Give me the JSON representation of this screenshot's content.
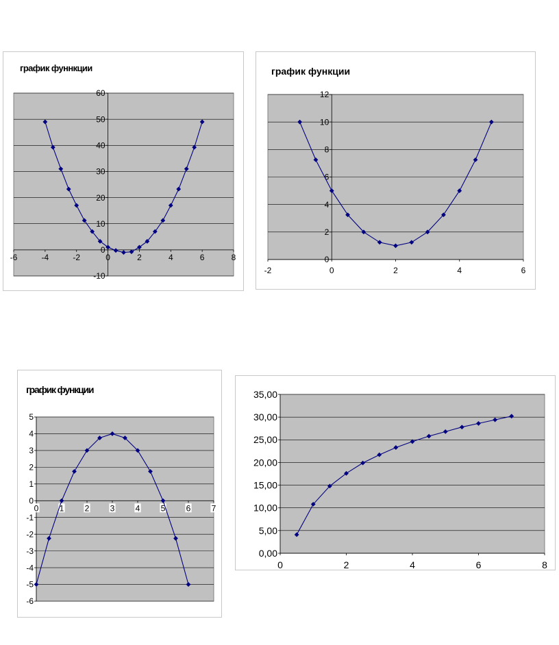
{
  "colors": {
    "plot_background": "#c0c0c0",
    "series_line": "#000080",
    "gridline": "#000000",
    "axis": "#000000"
  },
  "chart_data": [
    {
      "type": "scatter",
      "title": "график фуннкции",
      "xlim": [
        -6,
        8
      ],
      "ylim": [
        -10,
        60
      ],
      "xticks": [
        -6,
        -4,
        -2,
        0,
        2,
        4,
        6,
        8
      ],
      "yticks": [
        -10,
        0,
        10,
        20,
        30,
        40,
        50,
        60
      ],
      "grid": true,
      "legend": "none",
      "marker": "diamond",
      "series": [
        {
          "x": [
            -4,
            -3.5,
            -3,
            -2.5,
            -2,
            -1.5,
            -1,
            -0.5,
            0,
            0.5,
            1,
            1.5,
            2,
            2.5,
            3,
            3.5,
            4,
            4.5,
            5,
            5.5,
            6
          ],
          "y": [
            49,
            39.25,
            31,
            23.25,
            17,
            11.25,
            7,
            3.25,
            1,
            -0.25,
            -1,
            -0.75,
            1,
            3.25,
            7,
            11.25,
            17,
            23.25,
            31,
            39.25,
            49
          ]
        }
      ]
    },
    {
      "type": "scatter",
      "title": "график функции",
      "xlim": [
        -2,
        6
      ],
      "ylim": [
        0,
        12
      ],
      "xticks": [
        -2,
        0,
        2,
        4,
        6
      ],
      "yticks": [
        0,
        2,
        4,
        6,
        8,
        10,
        12
      ],
      "grid": true,
      "legend": "none",
      "marker": "diamond",
      "series": [
        {
          "x": [
            -1,
            -0.5,
            0,
            0.5,
            1,
            1.5,
            2,
            2.5,
            3,
            3.5,
            4,
            4.5,
            5
          ],
          "y": [
            10,
            7.25,
            5,
            3.25,
            2,
            1.25,
            1,
            1.25,
            2,
            3.25,
            5,
            7.25,
            10
          ]
        }
      ]
    },
    {
      "type": "scatter",
      "title": "график функции",
      "xlim": [
        0,
        7
      ],
      "ylim": [
        -6,
        5
      ],
      "xticks": [
        0,
        1,
        2,
        3,
        4,
        5,
        6,
        7
      ],
      "yticks": [
        -6,
        -5,
        -4,
        -3,
        -2,
        -1,
        0,
        1,
        2,
        3,
        4,
        5
      ],
      "grid": true,
      "legend": "none",
      "marker": "diamond",
      "series": [
        {
          "x": [
            0,
            0.5,
            1,
            1.5,
            2,
            2.5,
            3,
            3.5,
            4,
            4.5,
            5,
            5.5,
            6
          ],
          "y": [
            -5,
            -2.25,
            0,
            1.75,
            3,
            3.75,
            4,
            3.75,
            3,
            1.75,
            0,
            -2.25,
            -5
          ]
        }
      ]
    },
    {
      "type": "scatter",
      "title": "",
      "xlim": [
        0,
        8
      ],
      "ylim": [
        0,
        35
      ],
      "xticks": [
        0,
        2,
        4,
        6,
        8
      ],
      "yticks": [
        "0,00",
        "5,00",
        "10,00",
        "15,00",
        "20,00",
        "25,00",
        "30,00",
        "35,00"
      ],
      "grid": true,
      "legend": "none",
      "marker": "diamond",
      "series": [
        {
          "x": [
            0.5,
            1,
            1.5,
            2,
            2.5,
            3,
            3.5,
            4,
            4.5,
            5,
            5.5,
            6,
            6.5,
            7
          ],
          "y": [
            4.1,
            10.8,
            14.8,
            17.6,
            19.9,
            21.7,
            23.3,
            24.6,
            25.8,
            26.8,
            27.8,
            28.6,
            29.4,
            30.2
          ]
        }
      ]
    }
  ]
}
